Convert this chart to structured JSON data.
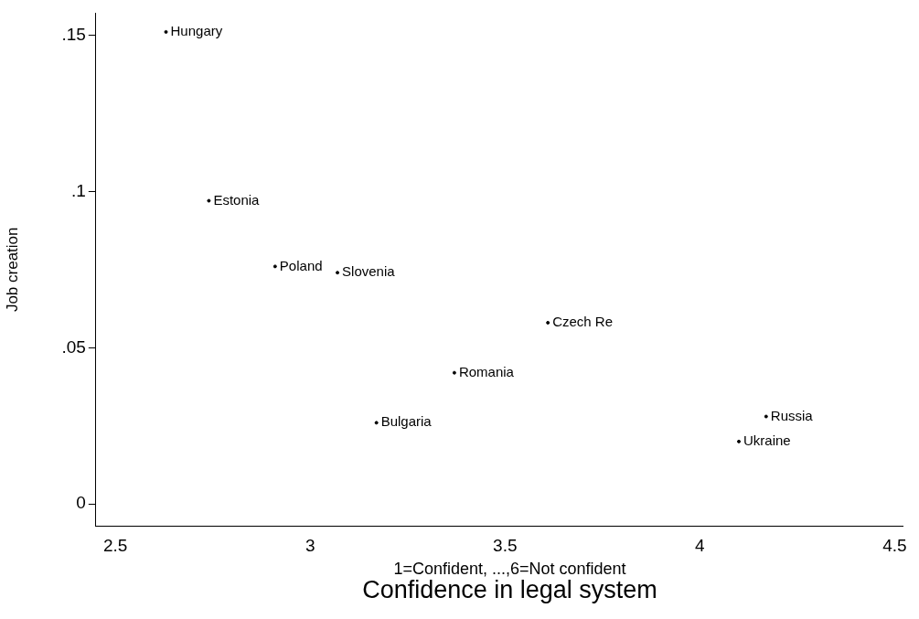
{
  "chart_data": {
    "type": "scatter",
    "xlabel": "Confidence in legal system",
    "ylabel": "Job creation",
    "annotations": [
      "1=Confident, ...,6=Not confident"
    ],
    "xlim": [
      2.45,
      4.52
    ],
    "ylim": [
      -0.007,
      0.157
    ],
    "xticks": [
      2.5,
      3,
      3.5,
      4,
      4.5
    ],
    "yticks": [
      {
        "value": 0,
        "label": "0"
      },
      {
        "value": 0.05,
        "label": ".05"
      },
      {
        "value": 0.1,
        "label": ".1"
      },
      {
        "value": 0.15,
        "label": ".15"
      }
    ],
    "grid": false,
    "legend": false,
    "marker": "circle",
    "series": [
      {
        "color": "#000000",
        "x": [
          2.63,
          2.74,
          2.91,
          3.07,
          3.61,
          3.37,
          3.17,
          4.17,
          4.1
        ],
        "values": [
          0.151,
          0.097,
          0.076,
          0.074,
          0.058,
          0.042,
          0.026,
          0.028,
          0.02
        ],
        "value_labels": [
          "Hungary",
          "Estonia",
          "Poland",
          "Slovenia",
          "Czech Re",
          "Romania",
          "Bulgaria",
          "Russia",
          "Ukraine"
        ]
      }
    ]
  }
}
